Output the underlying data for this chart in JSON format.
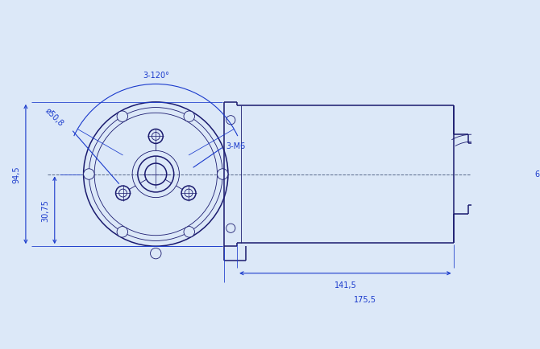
{
  "colors": {
    "bg": "#dce8f8",
    "lines": "#1a1a6e",
    "dims": "#1a3acc"
  },
  "dims": {
    "angle_label": "3-120°",
    "bolt_label": "3-M6",
    "dia_label": "ø50,8"
  }
}
